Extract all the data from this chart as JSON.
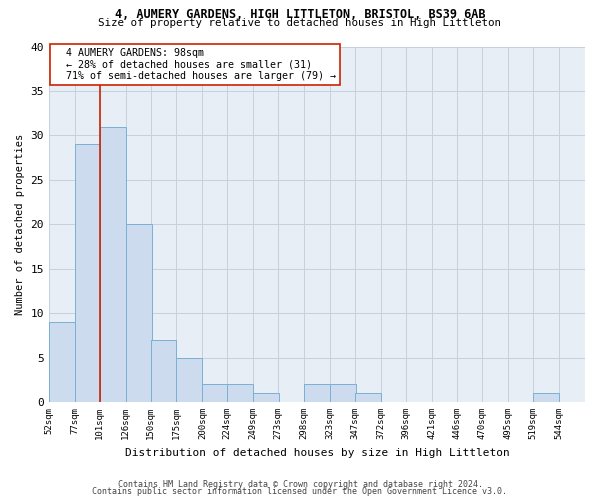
{
  "title1": "4, AUMERY GARDENS, HIGH LITTLETON, BRISTOL, BS39 6AB",
  "title2": "Size of property relative to detached houses in High Littleton",
  "xlabel": "Distribution of detached houses by size in High Littleton",
  "ylabel": "Number of detached properties",
  "footnote1": "Contains HM Land Registry data © Crown copyright and database right 2024.",
  "footnote2": "Contains public sector information licensed under the Open Government Licence v3.0.",
  "annotation_line1": "4 AUMERY GARDENS: 98sqm",
  "annotation_line2": "← 28% of detached houses are smaller (31)",
  "annotation_line3": "71% of semi-detached houses are larger (79) →",
  "bar_color": "#ccdcee",
  "bar_edge_color": "#7aafd4",
  "grid_color": "#c8d0dc",
  "bg_color": "#e8eef6",
  "vline_color": "#cc2200",
  "categories": [
    "52sqm",
    "77sqm",
    "101sqm",
    "126sqm",
    "150sqm",
    "175sqm",
    "200sqm",
    "224sqm",
    "249sqm",
    "273sqm",
    "298sqm",
    "323sqm",
    "347sqm",
    "372sqm",
    "396sqm",
    "421sqm",
    "446sqm",
    "470sqm",
    "495sqm",
    "519sqm",
    "544sqm"
  ],
  "bin_edges": [
    52,
    77,
    101,
    126,
    150,
    175,
    200,
    224,
    249,
    273,
    298,
    323,
    347,
    372,
    396,
    421,
    446,
    470,
    495,
    519,
    544
  ],
  "bin_width": 25,
  "values": [
    9,
    29,
    31,
    20,
    7,
    5,
    2,
    2,
    1,
    0,
    2,
    2,
    1,
    0,
    0,
    0,
    0,
    0,
    0,
    1,
    0
  ],
  "vline_x": 101,
  "ylim": [
    0,
    40
  ],
  "yticks": [
    0,
    5,
    10,
    15,
    20,
    25,
    30,
    35,
    40
  ],
  "figsize": [
    6.0,
    5.0
  ],
  "dpi": 100
}
